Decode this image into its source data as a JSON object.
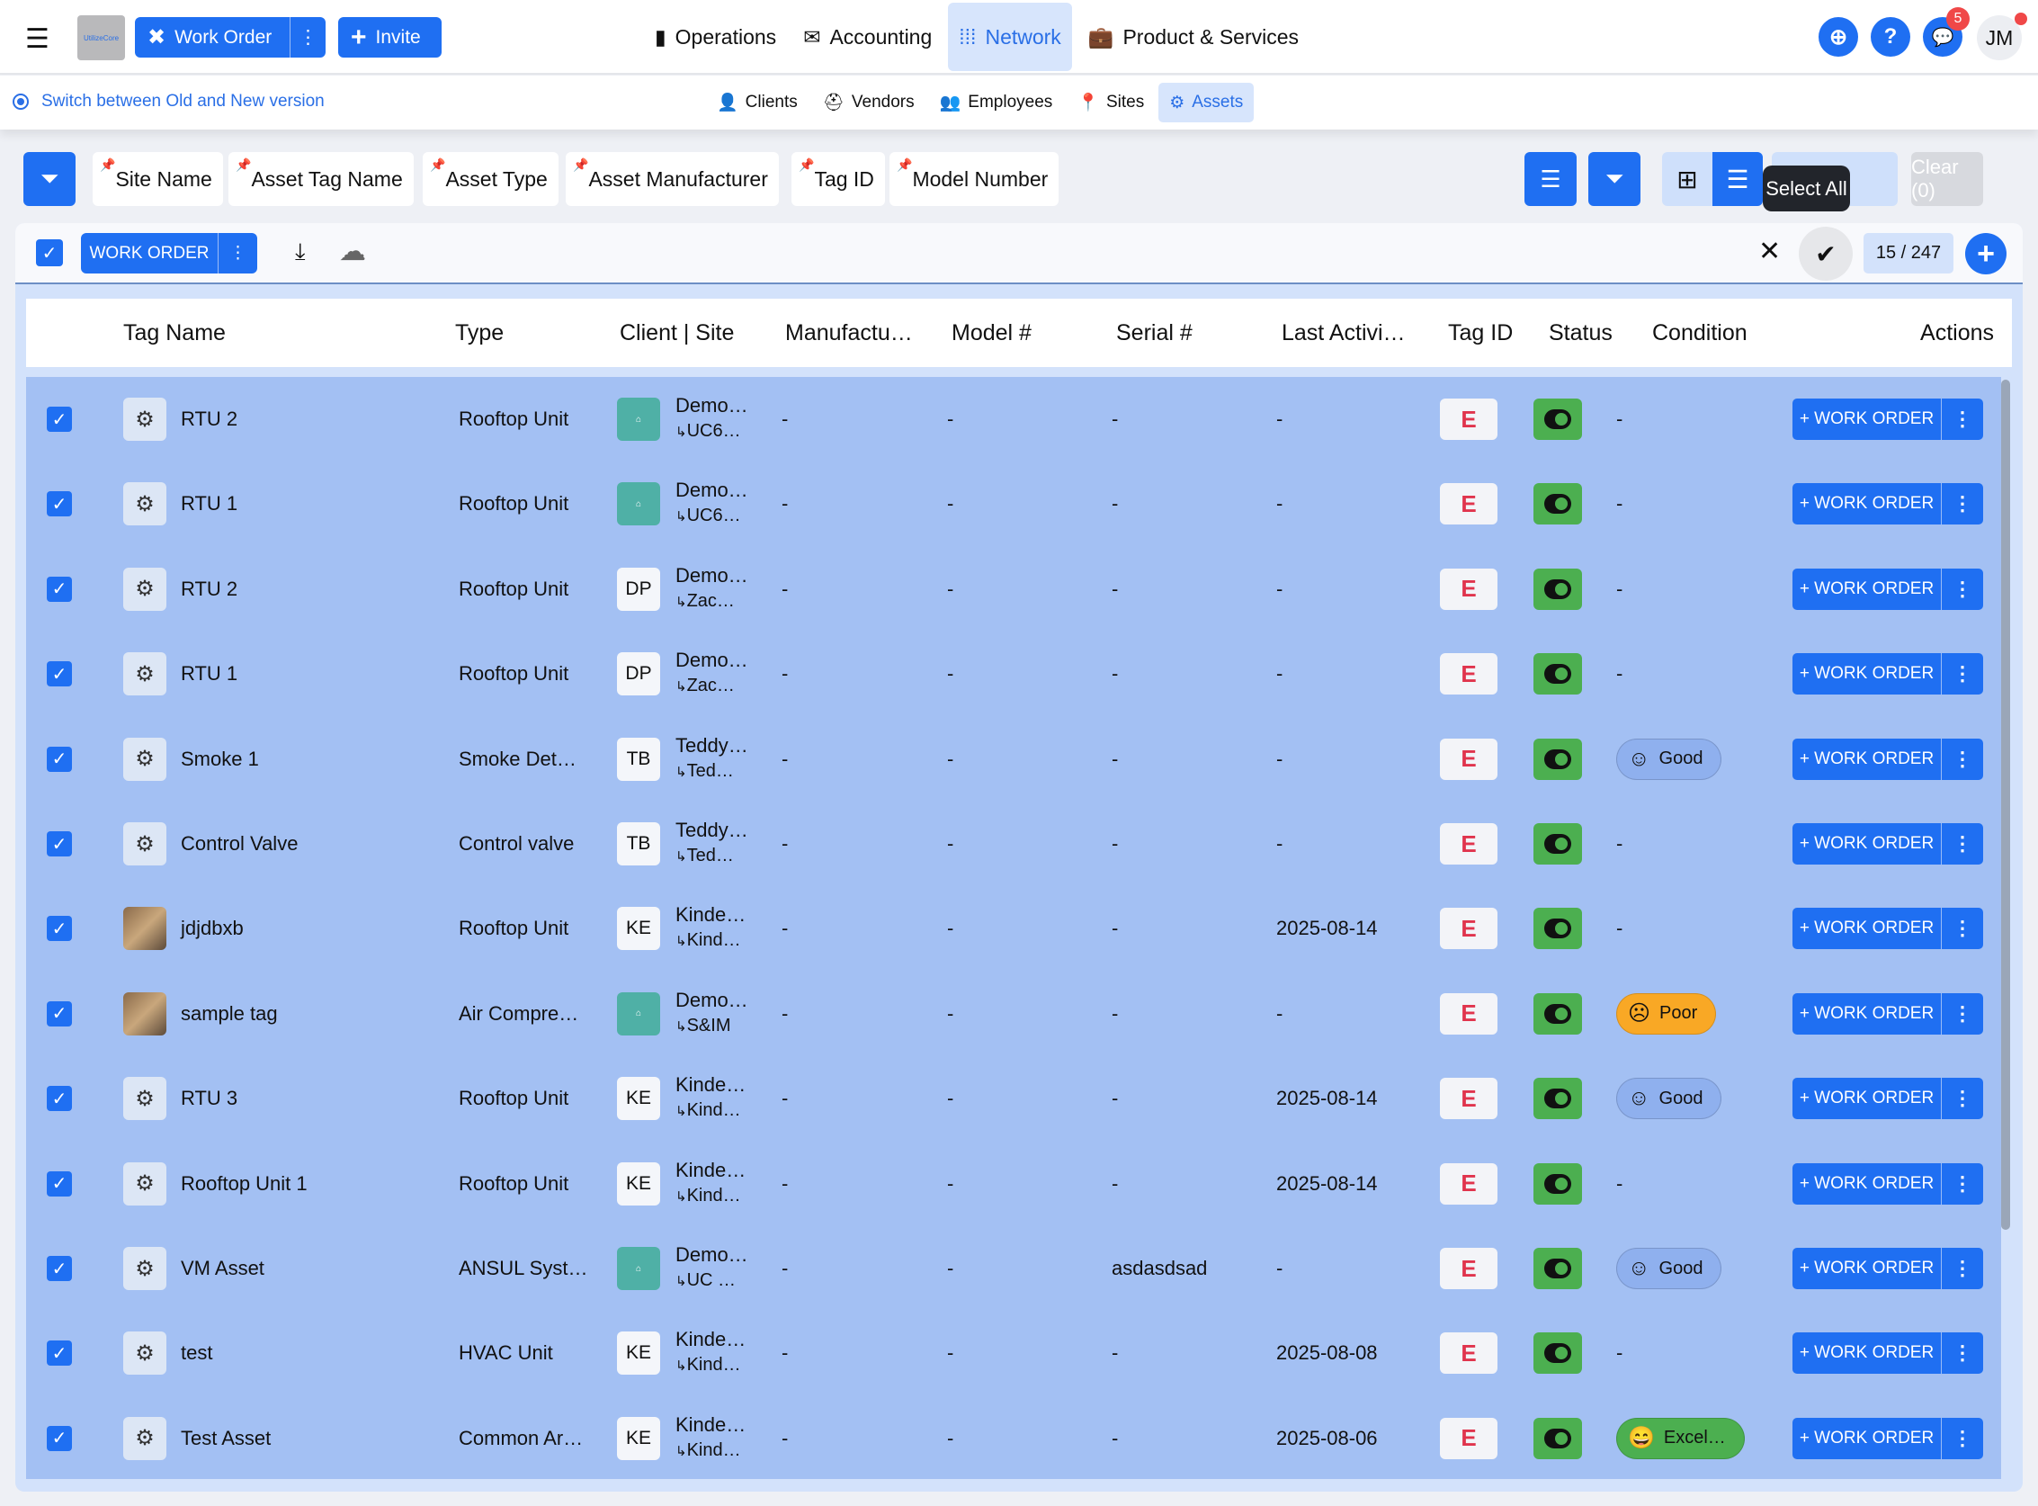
{
  "topbar": {
    "logo_text": "UtilizeCore",
    "work_order": "Work Order",
    "invite": "Invite",
    "nav": [
      {
        "label": "Operations",
        "icon": "id-badge-icon"
      },
      {
        "label": "Accounting",
        "icon": "money-envelope-icon"
      },
      {
        "label": "Network",
        "icon": "network-icon",
        "active": true
      },
      {
        "label": "Product & Services",
        "icon": "briefcase-icon"
      }
    ],
    "notifications_count": "5",
    "avatar": "JM"
  },
  "subbar": {
    "switch_label": "Switch between Old and New version",
    "items": [
      {
        "label": "Clients",
        "icon": "user-check-icon"
      },
      {
        "label": "Vendors",
        "icon": "hard-hat-icon"
      },
      {
        "label": "Employees",
        "icon": "users-gear-icon"
      },
      {
        "label": "Sites",
        "icon": "pin-icon"
      },
      {
        "label": "Assets",
        "icon": "gears-icon",
        "active": true
      }
    ]
  },
  "filters": {
    "chips": [
      "Site Name",
      "Asset Tag Name",
      "Asset Type",
      "Asset Manufacturer",
      "Tag ID",
      "Model Number"
    ],
    "tooltip": "Select All",
    "clear": "Clear (0)"
  },
  "toolbar": {
    "work_order": "WORK ORDER",
    "count": "15 / 247"
  },
  "table": {
    "headers": [
      "Tag Name",
      "Type",
      "Client | Site",
      "Manufactu…",
      "Model #",
      "Serial #",
      "Last Activi…",
      "Tag ID",
      "Status",
      "Condition",
      "Actions"
    ],
    "action_label": "+ WORK ORDER",
    "rows": [
      {
        "name": "RTU 2",
        "type": "Rooftop Unit",
        "avatar": "",
        "client": "Demo…",
        "site": "UC6…",
        "manufacturer": "-",
        "model": "-",
        "serial": "-",
        "last": "-",
        "condition": "-"
      },
      {
        "name": "RTU 1",
        "type": "Rooftop Unit",
        "avatar": "",
        "client": "Demo…",
        "site": "UC6…",
        "manufacturer": "-",
        "model": "-",
        "serial": "-",
        "last": "-",
        "condition": "-"
      },
      {
        "name": "RTU 2",
        "type": "Rooftop Unit",
        "avatar": "DP",
        "client": "Demo…",
        "site": "Zac…",
        "manufacturer": "-",
        "model": "-",
        "serial": "-",
        "last": "-",
        "condition": "-"
      },
      {
        "name": "RTU 1",
        "type": "Rooftop Unit",
        "avatar": "DP",
        "client": "Demo…",
        "site": "Zac…",
        "manufacturer": "-",
        "model": "-",
        "serial": "-",
        "last": "-",
        "condition": "-"
      },
      {
        "name": "Smoke 1",
        "type": "Smoke Det…",
        "avatar": "TB",
        "client": "Teddy…",
        "site": "Ted…",
        "manufacturer": "-",
        "model": "-",
        "serial": "-",
        "last": "-",
        "condition": "Good"
      },
      {
        "name": "Control Valve",
        "type": "Control valve",
        "avatar": "TB",
        "client": "Teddy…",
        "site": "Ted…",
        "manufacturer": "-",
        "model": "-",
        "serial": "-",
        "last": "-",
        "condition": "-"
      },
      {
        "name": "jdjdbxb",
        "type": "Rooftop Unit",
        "avatar": "KE",
        "client": "Kinde…",
        "site": "Kind…",
        "manufacturer": "-",
        "model": "-",
        "serial": "-",
        "last": "2025-08-14",
        "condition": "-",
        "photo": true
      },
      {
        "name": "sample tag",
        "type": "Air Compre…",
        "avatar": "",
        "client": "Demo…",
        "site": "S&IM",
        "manufacturer": "-",
        "model": "-",
        "serial": "-",
        "last": "-",
        "condition": "Poor",
        "photo": true
      },
      {
        "name": "RTU 3",
        "type": "Rooftop Unit",
        "avatar": "KE",
        "client": "Kinde…",
        "site": "Kind…",
        "manufacturer": "-",
        "model": "-",
        "serial": "-",
        "last": "2025-08-14",
        "condition": "Good"
      },
      {
        "name": "Rooftop Unit 1",
        "type": "Rooftop Unit",
        "avatar": "KE",
        "client": "Kinde…",
        "site": "Kind…",
        "manufacturer": "-",
        "model": "-",
        "serial": "-",
        "last": "2025-08-14",
        "condition": "-"
      },
      {
        "name": "VM Asset",
        "type": "ANSUL Syst…",
        "avatar": "",
        "client": "Demo…",
        "site": "UC …",
        "manufacturer": "-",
        "model": "-",
        "serial": "asdasdsad",
        "last": "-",
        "condition": "Good"
      },
      {
        "name": "test",
        "type": "HVAC Unit",
        "avatar": "KE",
        "client": "Kinde…",
        "site": "Kind…",
        "manufacturer": "-",
        "model": "-",
        "serial": "-",
        "last": "2025-08-08",
        "condition": "-"
      },
      {
        "name": "Test Asset",
        "type": "Common Ar…",
        "avatar": "KE",
        "client": "Kinde…",
        "site": "Kind…",
        "manufacturer": "-",
        "model": "-",
        "serial": "-",
        "last": "2025-08-06",
        "condition": "Excel…"
      }
    ]
  },
  "colors": {
    "primary": "#1f6ff2",
    "row_selected": "#a3c0f3",
    "good": "#8fb0ee",
    "poor": "#f9a825",
    "excellent": "#4caf50",
    "tag": "#e0344d"
  }
}
